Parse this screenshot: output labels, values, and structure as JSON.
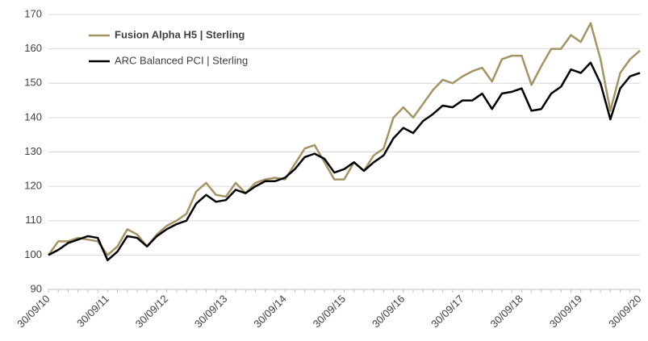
{
  "chart_data": {
    "type": "line",
    "categories": [
      "30/09/10",
      null,
      null,
      null,
      null,
      null,
      "30/09/11",
      null,
      null,
      null,
      null,
      null,
      "30/09/12",
      null,
      null,
      null,
      null,
      null,
      "30/09/13",
      null,
      null,
      null,
      null,
      null,
      "30/09/14",
      null,
      null,
      null,
      null,
      null,
      "30/09/15",
      null,
      null,
      null,
      null,
      null,
      "30/09/16",
      null,
      null,
      null,
      null,
      null,
      "30/09/17",
      null,
      null,
      null,
      null,
      null,
      "30/09/18",
      null,
      null,
      null,
      null,
      null,
      "30/09/19",
      null,
      null,
      null,
      null,
      null,
      "30/09/20"
    ],
    "series": [
      {
        "name": "Fusion Alpha H5 | Sterling",
        "color": "#a39464",
        "bold": true,
        "values": [
          100,
          104,
          104,
          105,
          104.5,
          104,
          100,
          102.5,
          107.5,
          106,
          102.5,
          106,
          108.5,
          110,
          112,
          118.5,
          121,
          117.5,
          117,
          121,
          118,
          121,
          122,
          122.5,
          122,
          126.5,
          131,
          132,
          127,
          122,
          122,
          127,
          124.5,
          129,
          131,
          140,
          143,
          140,
          144,
          148,
          151,
          150,
          152,
          153.5,
          154.5,
          150.5,
          157,
          158,
          158,
          149.5,
          155,
          160,
          160,
          164,
          162,
          167.5,
          157,
          142,
          153,
          157,
          159.5
        ]
      },
      {
        "name": "ARC Balanced PCI | Sterling",
        "color": "#000000",
        "bold": false,
        "values": [
          100,
          101.5,
          103.5,
          104.5,
          105.5,
          105,
          98.5,
          101,
          105.5,
          105,
          102.5,
          105.5,
          107.5,
          109,
          110,
          115,
          117.5,
          115.5,
          116,
          119,
          118,
          120,
          121.5,
          121.5,
          122.5,
          125,
          128.5,
          129.5,
          128,
          124,
          125,
          127,
          124.5,
          127,
          129,
          134,
          137,
          135.5,
          139,
          141,
          143.5,
          143,
          145,
          145,
          147,
          142.5,
          147,
          147.5,
          148.5,
          142,
          142.5,
          147,
          149,
          154,
          153,
          156,
          150,
          139.5,
          148.5,
          152,
          153
        ]
      }
    ],
    "ylim": [
      90,
      170
    ],
    "yticks": [
      90,
      100,
      110,
      120,
      130,
      140,
      150,
      160,
      170
    ],
    "grid": true
  }
}
